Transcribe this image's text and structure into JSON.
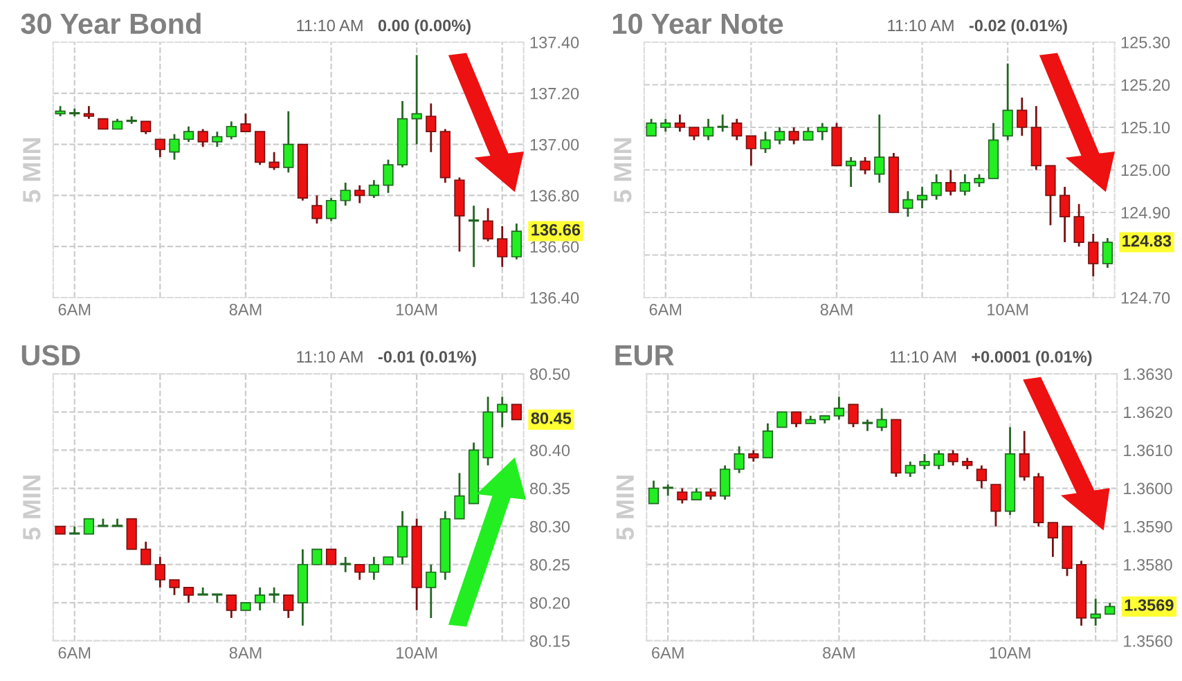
{
  "chart_data": [
    {
      "type": "candlestick",
      "title": "30 Year Bond",
      "subtitle": "11:10 AM",
      "ylabel": "5 MIN",
      "annotations": [
        "0.00 (0.00%)",
        "136.66"
      ],
      "x": [
        5.833,
        6.0,
        6.167,
        6.333,
        6.5,
        6.667,
        6.833,
        7.0,
        7.167,
        7.333,
        7.5,
        7.667,
        7.833,
        8.0,
        8.167,
        8.333,
        8.5,
        8.667,
        8.833,
        9.0,
        9.167,
        9.333,
        9.5,
        9.667,
        9.833,
        10.0,
        10.167,
        10.333,
        10.5,
        10.667,
        10.833,
        11.0,
        11.167
      ],
      "ohlc": [
        [
          137.12,
          137.15,
          137.11,
          137.13
        ],
        [
          137.12,
          137.14,
          137.11,
          137.12
        ],
        [
          137.12,
          137.15,
          137.1,
          137.11
        ],
        [
          137.1,
          137.1,
          137.06,
          137.06
        ],
        [
          137.06,
          137.1,
          137.06,
          137.09
        ],
        [
          137.09,
          137.11,
          137.08,
          137.09
        ],
        [
          137.09,
          137.09,
          137.04,
          137.05
        ],
        [
          137.02,
          137.02,
          136.95,
          136.98
        ],
        [
          136.97,
          137.04,
          136.94,
          137.02
        ],
        [
          137.02,
          137.07,
          137.01,
          137.05
        ],
        [
          137.05,
          137.06,
          136.99,
          137.01
        ],
        [
          137.01,
          137.05,
          136.99,
          137.03
        ],
        [
          137.03,
          137.09,
          137.02,
          137.07
        ],
        [
          137.08,
          137.12,
          137.05,
          137.05
        ],
        [
          137.05,
          137.05,
          136.92,
          136.93
        ],
        [
          136.93,
          136.97,
          136.9,
          136.91
        ],
        [
          136.91,
          137.13,
          136.89,
          137.0
        ],
        [
          137.0,
          137.0,
          136.78,
          136.79
        ],
        [
          136.76,
          136.8,
          136.69,
          136.71
        ],
        [
          136.71,
          136.79,
          136.7,
          136.78
        ],
        [
          136.78,
          136.85,
          136.76,
          136.82
        ],
        [
          136.82,
          136.84,
          136.77,
          136.8
        ],
        [
          136.8,
          136.86,
          136.79,
          136.84
        ],
        [
          136.84,
          136.94,
          136.81,
          136.92
        ],
        [
          136.92,
          137.17,
          136.91,
          137.1
        ],
        [
          137.1,
          137.35,
          137.0,
          137.12
        ],
        [
          137.11,
          137.16,
          136.97,
          137.05
        ],
        [
          137.05,
          137.06,
          136.85,
          136.87
        ],
        [
          136.86,
          136.87,
          136.58,
          136.72
        ],
        [
          136.7,
          136.76,
          136.52,
          136.7
        ],
        [
          136.7,
          136.75,
          136.62,
          136.63
        ],
        [
          136.63,
          136.68,
          136.52,
          136.56
        ],
        [
          136.56,
          136.69,
          136.55,
          136.66
        ]
      ],
      "xlim": [
        5.75,
        11.25
      ],
      "xticks": [
        {
          "value": 6,
          "label": "6AM"
        },
        {
          "value": 7,
          "label": null
        },
        {
          "value": 8,
          "label": "8AM"
        },
        {
          "value": 9,
          "label": null
        },
        {
          "value": 10,
          "label": "10AM"
        },
        {
          "value": 11,
          "label": null
        }
      ],
      "ylim": [
        136.4,
        137.4
      ],
      "yticks": [
        {
          "value": 136.4,
          "label": "136.40"
        },
        {
          "value": 136.6,
          "label": "136.60"
        },
        {
          "value": 136.8,
          "label": "136.80"
        },
        {
          "value": 137.0,
          "label": "137.00"
        },
        {
          "value": 137.2,
          "label": "137.20"
        },
        {
          "value": 137.4,
          "label": "137.40"
        }
      ],
      "grid": true
    },
    {
      "type": "candlestick",
      "title": "10 Year Note",
      "subtitle": "11:10 AM",
      "ylabel": "5 MIN",
      "annotations": [
        "-0.02 (0.01%)",
        "124.83"
      ],
      "x": [
        5.833,
        6.0,
        6.167,
        6.333,
        6.5,
        6.667,
        6.833,
        7.0,
        7.167,
        7.333,
        7.5,
        7.667,
        7.833,
        8.0,
        8.167,
        8.333,
        8.5,
        8.667,
        8.833,
        9.0,
        9.167,
        9.333,
        9.5,
        9.667,
        9.833,
        10.0,
        10.167,
        10.333,
        10.5,
        10.667,
        10.833,
        11.0,
        11.167
      ],
      "ohlc": [
        [
          125.08,
          125.12,
          125.08,
          125.11
        ],
        [
          125.1,
          125.12,
          125.09,
          125.11
        ],
        [
          125.11,
          125.13,
          125.09,
          125.1
        ],
        [
          125.1,
          125.1,
          125.07,
          125.08
        ],
        [
          125.08,
          125.12,
          125.07,
          125.1
        ],
        [
          125.1,
          125.13,
          125.09,
          125.1
        ],
        [
          125.11,
          125.12,
          125.07,
          125.08
        ],
        [
          125.08,
          125.08,
          125.01,
          125.05
        ],
        [
          125.05,
          125.09,
          125.04,
          125.07
        ],
        [
          125.07,
          125.1,
          125.06,
          125.09
        ],
        [
          125.09,
          125.1,
          125.06,
          125.07
        ],
        [
          125.07,
          125.1,
          125.07,
          125.09
        ],
        [
          125.09,
          125.11,
          125.07,
          125.1
        ],
        [
          125.1,
          125.11,
          125.01,
          125.01
        ],
        [
          125.01,
          125.03,
          124.96,
          125.02
        ],
        [
          125.02,
          125.03,
          124.99,
          125.0
        ],
        [
          124.99,
          125.13,
          124.97,
          125.03
        ],
        [
          125.03,
          125.04,
          124.9,
          124.9
        ],
        [
          124.91,
          124.95,
          124.89,
          124.93
        ],
        [
          124.93,
          124.96,
          124.91,
          124.94
        ],
        [
          124.94,
          124.99,
          124.93,
          124.97
        ],
        [
          124.97,
          125.0,
          124.94,
          124.95
        ],
        [
          124.95,
          124.99,
          124.94,
          124.97
        ],
        [
          124.97,
          124.99,
          124.96,
          124.98
        ],
        [
          124.98,
          125.11,
          124.98,
          125.07
        ],
        [
          125.08,
          125.25,
          125.07,
          125.14
        ],
        [
          125.14,
          125.17,
          125.08,
          125.1
        ],
        [
          125.1,
          125.15,
          125.0,
          125.01
        ],
        [
          125.01,
          125.01,
          124.87,
          124.94
        ],
        [
          124.94,
          124.96,
          124.83,
          124.89
        ],
        [
          124.89,
          124.92,
          124.82,
          124.83
        ],
        [
          124.83,
          124.85,
          124.75,
          124.78
        ],
        [
          124.78,
          124.84,
          124.77,
          124.83
        ]
      ],
      "xlim": [
        5.75,
        11.25
      ],
      "xticks": [
        {
          "value": 6,
          "label": "6AM"
        },
        {
          "value": 7,
          "label": null
        },
        {
          "value": 8,
          "label": "8AM"
        },
        {
          "value": 9,
          "label": null
        },
        {
          "value": 10,
          "label": "10AM"
        },
        {
          "value": 11,
          "label": null
        }
      ],
      "ylim": [
        124.7,
        125.3
      ],
      "yticks": [
        {
          "value": 124.7,
          "label": "124.70"
        },
        {
          "value": 124.8,
          "label": null
        },
        {
          "value": 124.9,
          "label": "124.90"
        },
        {
          "value": 125.0,
          "label": "125.00"
        },
        {
          "value": 125.1,
          "label": "125.10"
        },
        {
          "value": 125.2,
          "label": "125.20"
        },
        {
          "value": 125.3,
          "label": "125.30"
        }
      ],
      "grid": true
    },
    {
      "type": "candlestick",
      "title": "USD",
      "subtitle": "11:10 AM",
      "ylabel": "5 MIN",
      "annotations": [
        "-0.01 (0.01%)",
        "80.45"
      ],
      "x": [
        5.833,
        6.0,
        6.167,
        6.333,
        6.5,
        6.667,
        6.833,
        7.0,
        7.167,
        7.333,
        7.5,
        7.667,
        7.833,
        8.0,
        8.167,
        8.333,
        8.5,
        8.667,
        8.833,
        9.0,
        9.167,
        9.333,
        9.5,
        9.667,
        9.833,
        10.0,
        10.167,
        10.333,
        10.5,
        10.667,
        10.833,
        11.0,
        11.167
      ],
      "ohlc": [
        [
          80.3,
          80.3,
          80.29,
          80.29
        ],
        [
          80.29,
          80.3,
          80.29,
          80.29
        ],
        [
          80.29,
          80.31,
          80.29,
          80.31
        ],
        [
          80.3,
          80.31,
          80.3,
          80.3
        ],
        [
          80.3,
          80.31,
          80.3,
          80.3
        ],
        [
          80.31,
          80.31,
          80.27,
          80.27
        ],
        [
          80.27,
          80.28,
          80.25,
          80.25
        ],
        [
          80.25,
          80.26,
          80.22,
          80.23
        ],
        [
          80.23,
          80.23,
          80.21,
          80.22
        ],
        [
          80.22,
          80.22,
          80.2,
          80.21
        ],
        [
          80.21,
          80.22,
          80.21,
          80.21
        ],
        [
          80.21,
          80.21,
          80.2,
          80.21
        ],
        [
          80.21,
          80.21,
          80.18,
          80.19
        ],
        [
          80.19,
          80.2,
          80.19,
          80.2
        ],
        [
          80.2,
          80.22,
          80.19,
          80.21
        ],
        [
          80.21,
          80.22,
          80.2,
          80.21
        ],
        [
          80.21,
          80.21,
          80.18,
          80.19
        ],
        [
          80.2,
          80.27,
          80.17,
          80.25
        ],
        [
          80.25,
          80.27,
          80.25,
          80.27
        ],
        [
          80.27,
          80.27,
          80.25,
          80.25
        ],
        [
          80.25,
          80.26,
          80.24,
          80.25
        ],
        [
          80.25,
          80.25,
          80.23,
          80.24
        ],
        [
          80.24,
          80.26,
          80.23,
          80.25
        ],
        [
          80.25,
          80.26,
          80.25,
          80.26
        ],
        [
          80.26,
          80.32,
          80.25,
          80.3
        ],
        [
          80.3,
          80.31,
          80.19,
          80.22
        ],
        [
          80.22,
          80.25,
          80.18,
          80.24
        ],
        [
          80.24,
          80.32,
          80.23,
          80.31
        ],
        [
          80.31,
          80.37,
          80.31,
          80.34
        ],
        [
          80.33,
          80.41,
          80.33,
          80.4
        ],
        [
          80.39,
          80.47,
          80.38,
          80.45
        ],
        [
          80.45,
          80.47,
          80.43,
          80.46
        ],
        [
          80.46,
          80.46,
          80.44,
          80.44
        ]
      ],
      "xlim": [
        5.75,
        11.25
      ],
      "xticks": [
        {
          "value": 6,
          "label": "6AM"
        },
        {
          "value": 7,
          "label": null
        },
        {
          "value": 8,
          "label": "8AM"
        },
        {
          "value": 9,
          "label": null
        },
        {
          "value": 10,
          "label": "10AM"
        },
        {
          "value": 11,
          "label": null
        }
      ],
      "ylim": [
        80.15,
        80.5
      ],
      "yticks": [
        {
          "value": 80.15,
          "label": "80.15"
        },
        {
          "value": 80.2,
          "label": "80.20"
        },
        {
          "value": 80.25,
          "label": "80.25"
        },
        {
          "value": 80.3,
          "label": "80.30"
        },
        {
          "value": 80.35,
          "label": "80.35"
        },
        {
          "value": 80.4,
          "label": "80.40"
        },
        {
          "value": 80.45,
          "label": null
        },
        {
          "value": 80.5,
          "label": "80.50"
        }
      ],
      "grid": true
    },
    {
      "type": "candlestick",
      "title": "EUR",
      "subtitle": "11:10 AM",
      "ylabel": "5 MIN",
      "annotations": [
        "+0.0001 (0.01%)",
        "1.3569"
      ],
      "x": [
        5.833,
        6.0,
        6.167,
        6.333,
        6.5,
        6.667,
        6.833,
        7.0,
        7.167,
        7.333,
        7.5,
        7.667,
        7.833,
        8.0,
        8.167,
        8.333,
        8.5,
        8.667,
        8.833,
        9.0,
        9.167,
        9.333,
        9.5,
        9.667,
        9.833,
        10.0,
        10.167,
        10.333,
        10.5,
        10.667,
        10.833,
        11.0,
        11.167
      ],
      "ohlc": [
        [
          1.3596,
          1.3602,
          1.3596,
          1.36
        ],
        [
          1.36,
          1.3601,
          1.3598,
          1.36
        ],
        [
          1.3599,
          1.36,
          1.3596,
          1.3597
        ],
        [
          1.3597,
          1.36,
          1.3597,
          1.3599
        ],
        [
          1.3599,
          1.36,
          1.3597,
          1.3598
        ],
        [
          1.3598,
          1.3606,
          1.3597,
          1.3605
        ],
        [
          1.3605,
          1.3611,
          1.3604,
          1.3609
        ],
        [
          1.3609,
          1.361,
          1.3607,
          1.3608
        ],
        [
          1.3608,
          1.3617,
          1.3608,
          1.3615
        ],
        [
          1.3616,
          1.362,
          1.3616,
          1.362
        ],
        [
          1.362,
          1.362,
          1.3616,
          1.3617
        ],
        [
          1.3617,
          1.3619,
          1.3617,
          1.3618
        ],
        [
          1.3618,
          1.3619,
          1.3617,
          1.3619
        ],
        [
          1.3619,
          1.3624,
          1.3618,
          1.3621
        ],
        [
          1.3622,
          1.3622,
          1.3616,
          1.3617
        ],
        [
          1.3617,
          1.3618,
          1.3615,
          1.3617
        ],
        [
          1.3616,
          1.3621,
          1.3615,
          1.3618
        ],
        [
          1.3618,
          1.3618,
          1.3603,
          1.3604
        ],
        [
          1.3604,
          1.3607,
          1.3603,
          1.3606
        ],
        [
          1.3606,
          1.3609,
          1.3605,
          1.3607
        ],
        [
          1.3606,
          1.361,
          1.3605,
          1.3609
        ],
        [
          1.3609,
          1.361,
          1.3606,
          1.3607
        ],
        [
          1.3607,
          1.3608,
          1.3605,
          1.3606
        ],
        [
          1.3605,
          1.3606,
          1.36,
          1.3602
        ],
        [
          1.3601,
          1.3601,
          1.359,
          1.3594
        ],
        [
          1.3594,
          1.3616,
          1.3593,
          1.3609
        ],
        [
          1.3609,
          1.3615,
          1.3602,
          1.3603
        ],
        [
          1.3603,
          1.3604,
          1.359,
          1.3591
        ],
        [
          1.3591,
          1.3591,
          1.3582,
          1.3587
        ],
        [
          1.359,
          1.359,
          1.3577,
          1.3579
        ],
        [
          1.358,
          1.3581,
          1.3564,
          1.3566
        ],
        [
          1.3566,
          1.3571,
          1.3564,
          1.3567
        ],
        [
          1.3567,
          1.357,
          1.3567,
          1.3569
        ]
      ],
      "xlim": [
        5.75,
        11.25
      ],
      "xticks": [
        {
          "value": 6,
          "label": "6AM"
        },
        {
          "value": 7,
          "label": null
        },
        {
          "value": 8,
          "label": "8AM"
        },
        {
          "value": 9,
          "label": null
        },
        {
          "value": 10,
          "label": "10AM"
        },
        {
          "value": 11,
          "label": null
        }
      ],
      "ylim": [
        1.356,
        1.363
      ],
      "yticks": [
        {
          "value": 1.356,
          "label": "1.3560"
        },
        {
          "value": 1.357,
          "label": null
        },
        {
          "value": 1.358,
          "label": "1.3580"
        },
        {
          "value": 1.359,
          "label": "1.3590"
        },
        {
          "value": 1.36,
          "label": "1.3600"
        },
        {
          "value": 1.361,
          "label": "1.3610"
        },
        {
          "value": 1.362,
          "label": "1.3620"
        },
        {
          "value": 1.363,
          "label": "1.3630"
        }
      ],
      "grid": true
    }
  ]
}
